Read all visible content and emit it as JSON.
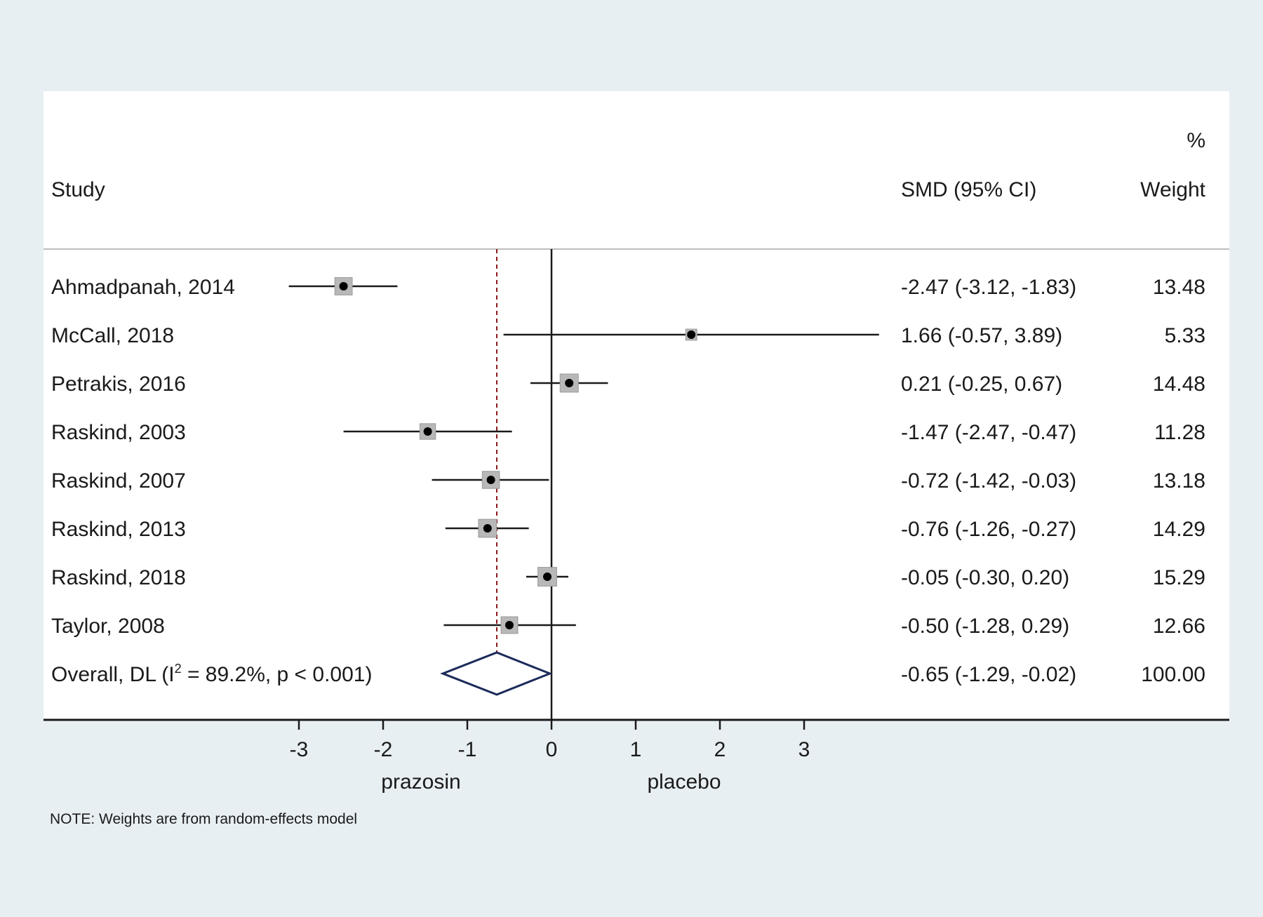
{
  "chart_data": {
    "type": "forest",
    "header": {
      "study": "Study",
      "smd": "SMD (95% CI)",
      "weight_top": "%",
      "weight": "Weight"
    },
    "studies": [
      {
        "label": "Ahmadpanah, 2014",
        "smd": -2.47,
        "lo": -3.12,
        "hi": -1.83,
        "smd_text": "-2.47 (-3.12, -1.83)",
        "weight": 13.48,
        "weight_text": "13.48"
      },
      {
        "label": "McCall, 2018",
        "smd": 1.66,
        "lo": -0.57,
        "hi": 3.89,
        "smd_text": "1.66 (-0.57, 3.89)",
        "weight": 5.33,
        "weight_text": "5.33"
      },
      {
        "label": "Petrakis, 2016",
        "smd": 0.21,
        "lo": -0.25,
        "hi": 0.67,
        "smd_text": "0.21 (-0.25, 0.67)",
        "weight": 14.48,
        "weight_text": "14.48"
      },
      {
        "label": "Raskind, 2003",
        "smd": -1.47,
        "lo": -2.47,
        "hi": -0.47,
        "smd_text": "-1.47 (-2.47, -0.47)",
        "weight": 11.28,
        "weight_text": "11.28"
      },
      {
        "label": "Raskind, 2007",
        "smd": -0.72,
        "lo": -1.42,
        "hi": -0.03,
        "smd_text": "-0.72 (-1.42, -0.03)",
        "weight": 13.18,
        "weight_text": "13.18"
      },
      {
        "label": "Raskind, 2013",
        "smd": -0.76,
        "lo": -1.26,
        "hi": -0.27,
        "smd_text": "-0.76 (-1.26, -0.27)",
        "weight": 14.29,
        "weight_text": "14.29"
      },
      {
        "label": "Raskind, 2018",
        "smd": -0.05,
        "lo": -0.3,
        "hi": 0.2,
        "smd_text": "-0.05 (-0.30, 0.20)",
        "weight": 15.29,
        "weight_text": "15.29"
      },
      {
        "label": "Taylor, 2008",
        "smd": -0.5,
        "lo": -1.28,
        "hi": 0.29,
        "smd_text": "-0.50 (-1.28, 0.29)",
        "weight": 12.66,
        "weight_text": "12.66"
      }
    ],
    "overall": {
      "label_pre": "Overall, DL (I",
      "label_sup": "2",
      "label_post": " = 89.2%, p < 0.001)",
      "smd": -0.65,
      "lo": -1.29,
      "hi": -0.02,
      "smd_text": "-0.65 (-1.29, -0.02)",
      "weight": 100.0,
      "weight_text": "100.00"
    },
    "x_axis": {
      "ticks": [
        -3,
        -2,
        -1,
        0,
        1,
        2,
        3
      ],
      "tick_labels": [
        "-3",
        "-2",
        "-1",
        "0",
        "1",
        "2",
        "3"
      ],
      "range": [
        -3.3,
        3.9
      ],
      "left_label": "prazosin",
      "right_label": "placebo"
    },
    "note": "NOTE: Weights are from random-effects model",
    "colors": {
      "background": "#e8eff3",
      "plot_bg": "#ffffff",
      "ink": "#1a1a1a",
      "box": "#b8b8b8",
      "overall_line": "#8b1a1a",
      "diamond": "#1c2a5a"
    }
  }
}
